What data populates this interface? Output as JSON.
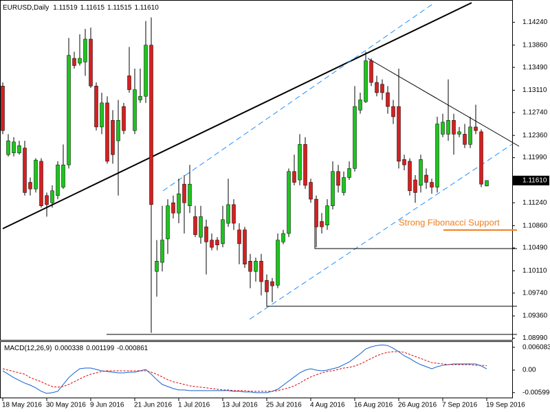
{
  "chart_data": {
    "type": "candlestick",
    "symbol": "EURUSD,Daily",
    "value_labels": [
      "1.11519",
      "1.11615",
      "1.11515",
      "1.11610"
    ],
    "annotation": "Strong Fibonacci Support",
    "up_color": "#1ec41e",
    "down_color": "#d42020",
    "x": [
      "18 May 2016",
      null,
      null,
      null,
      null,
      null,
      null,
      null,
      "30 May 2016",
      null,
      null,
      null,
      null,
      null,
      null,
      null,
      "9 Jun 2016",
      null,
      null,
      null,
      null,
      null,
      null,
      null,
      "21 Jun 2016",
      null,
      null,
      null,
      null,
      null,
      null,
      null,
      "1 Jul 2016",
      null,
      null,
      null,
      null,
      null,
      null,
      null,
      "13 Jul 2016",
      null,
      null,
      null,
      null,
      null,
      null,
      null,
      "25 Jul 2016",
      null,
      null,
      null,
      null,
      null,
      null,
      null,
      "4 Aug 2016",
      null,
      null,
      null,
      null,
      null,
      null,
      null,
      "16 Aug 2016",
      null,
      null,
      null,
      null,
      null,
      null,
      null,
      "26 Aug 2016",
      null,
      null,
      null,
      null,
      null,
      null,
      null,
      "7 Sep 2016",
      null,
      null,
      null,
      null,
      null,
      null,
      null,
      "19 Sep 2016"
    ],
    "open": [
      1.1318,
      1.1204,
      1.1207,
      1.1207,
      1.1215,
      1.1158,
      1.1147,
      1.1193,
      1.1136,
      1.1124,
      1.1136,
      1.115,
      1.1187,
      1.1364,
      1.1356,
      1.1358,
      1.1396,
      1.1318,
      1.125,
      1.129,
      1.1261,
      1.1227,
      1.1284,
      1.1335,
      1.1244,
      1.1295,
      1.1301,
      1.1386,
      1.101,
      1.1025,
      1.1064,
      1.1124,
      1.1107,
      1.1155,
      1.1119,
      1.1101,
      1.1067,
      1.1084,
      1.1062,
      1.1062,
      1.1056,
      1.109,
      1.1121,
      1.1079,
      1.1079,
      1.1027,
      1.101,
      1.1027,
      1.0995,
      1.0993,
      1.0987,
      1.1059,
      1.1073,
      1.1176,
      1.1162,
      1.1221,
      1.1158,
      1.113,
      1.1093,
      1.1087,
      1.1119,
      1.1176,
      1.1141,
      1.1166,
      1.1181,
      1.1278,
      1.1292,
      1.136,
      1.1324,
      1.1321,
      1.1307,
      1.1284,
      1.1284,
      1.1196,
      1.1193,
      1.1162,
      1.1153,
      1.117,
      1.1158,
      1.115,
      1.1238,
      1.1238,
      1.1261,
      1.1238,
      1.1238,
      1.1221,
      1.125,
      1.1242,
      1.11519
    ],
    "high": [
      1.1324,
      1.1238,
      1.1233,
      1.1227,
      1.1227,
      1.1166,
      1.1198,
      1.1198,
      1.1141,
      1.1153,
      1.1193,
      1.1221,
      1.1398,
      1.1375,
      1.1404,
      1.1413,
      1.1415,
      1.1324,
      1.1307,
      1.1301,
      1.1278,
      1.1295,
      1.129,
      1.1383,
      1.1347,
      1.1347,
      1.1426,
      1.1432,
      1.1062,
      1.1119,
      1.113,
      1.1136,
      1.1164,
      1.117,
      1.1187,
      1.1119,
      1.1119,
      1.1096,
      1.1073,
      1.1067,
      1.1119,
      1.1164,
      1.113,
      1.109,
      1.1084,
      1.1039,
      1.1033,
      1.1039,
      1.1005,
      1.0999,
      1.1073,
      1.1079,
      1.1181,
      1.1204,
      1.1238,
      1.1233,
      1.1164,
      1.1136,
      1.1107,
      1.113,
      1.1193,
      1.1187,
      1.1176,
      1.1193,
      1.1318,
      1.1307,
      1.1375,
      1.1364,
      1.1335,
      1.1329,
      1.1318,
      1.1295,
      1.1347,
      1.1204,
      1.1198,
      1.117,
      1.1204,
      1.1181,
      1.1164,
      1.1267,
      1.1272,
      1.1329,
      1.1272,
      1.125,
      1.1255,
      1.1267,
      1.1287,
      1.1246,
      1.11615
    ],
    "low": [
      1.1238,
      1.1201,
      1.1201,
      1.1204,
      1.1136,
      1.1136,
      1.1141,
      1.1116,
      1.1101,
      1.1116,
      1.113,
      1.1147,
      1.1181,
      1.1347,
      1.1352,
      1.1335,
      1.1315,
      1.1244,
      1.1238,
      1.1189,
      1.1189,
      1.1136,
      1.1238,
      1.1307,
      1.1238,
      1.129,
      1.129,
      1.0908,
      1.0968,
      1.101,
      1.1039,
      1.1098,
      1.109,
      1.1073,
      1.1107,
      1.1067,
      1.1056,
      1.1005,
      1.1045,
      1.1045,
      1.105,
      1.1084,
      1.1079,
      1.1022,
      1.1016,
      1.0982,
      1.0993,
      1.097,
      1.0953,
      1.0959,
      1.0982,
      1.1055,
      1.1067,
      1.1153,
      1.1153,
      1.1147,
      1.1124,
      1.105,
      1.1073,
      1.1079,
      1.1113,
      1.1141,
      1.1136,
      1.1162,
      1.1176,
      1.1272,
      1.129,
      1.1318,
      1.1301,
      1.1295,
      1.1272,
      1.1255,
      1.1181,
      1.1178,
      1.1136,
      1.1124,
      1.1141,
      1.1147,
      1.1139,
      1.1141,
      1.1233,
      1.1227,
      1.1204,
      1.1233,
      1.1215,
      1.1215,
      1.1238,
      1.115,
      1.11515
    ],
    "close": [
      1.1244,
      1.1227,
      1.1225,
      1.1219,
      1.1141,
      1.1147,
      1.1195,
      1.1119,
      1.1121,
      1.1144,
      1.1187,
      1.1187,
      1.1369,
      1.1352,
      1.1364,
      1.1396,
      1.1318,
      1.125,
      1.129,
      1.1193,
      1.1204,
      1.1261,
      1.1244,
      1.1312,
      1.1312,
      1.1301,
      1.1386,
      1.1121,
      1.1027,
      1.1062,
      1.1119,
      1.1107,
      1.1139,
      1.1124,
      1.1155,
      1.1071,
      1.1101,
      1.1059,
      1.105,
      1.1054,
      1.1096,
      1.1121,
      1.109,
      1.1056,
      1.1022,
      1.101,
      1.1027,
      1.0993,
      1.0976,
      1.0986,
      1.1062,
      1.1073,
      1.1176,
      1.1158,
      1.1221,
      1.1153,
      1.113,
      1.1084,
      1.1084,
      1.1119,
      1.1176,
      1.1153,
      1.1166,
      1.1181,
      1.1284,
      1.1295,
      1.136,
      1.1324,
      1.1307,
      1.1307,
      1.1284,
      1.1267,
      1.1193,
      1.1187,
      1.1144,
      1.1141,
      1.1196,
      1.1158,
      1.115,
      1.1255,
      1.1258,
      1.1261,
      1.1238,
      1.1242,
      1.1221,
      1.125,
      1.1244,
      1.1155,
      1.1161
    ],
    "ylim": [
      1.0895,
      1.1461
    ],
    "yticks": [
      {
        "value": 1.1424,
        "label": "1.14240"
      },
      {
        "value": 1.1386,
        "label": "1.13860"
      },
      {
        "value": 1.1349,
        "label": "1.13490"
      },
      {
        "value": 1.1311,
        "label": "1.13110"
      },
      {
        "value": 1.1274,
        "label": "1.12740"
      },
      {
        "value": 1.1236,
        "label": "1.12360"
      },
      {
        "value": 1.1199,
        "label": "1.11990"
      },
      {
        "value": 1.1124,
        "label": "1.11240"
      },
      {
        "value": 1.1086,
        "label": "1.10860"
      },
      {
        "value": 1.1049,
        "label": "1.10490"
      },
      {
        "value": 1.1011,
        "label": "1.10110"
      },
      {
        "value": 1.0974,
        "label": "1.09740"
      },
      {
        "value": 1.0936,
        "label": "1.09360"
      },
      {
        "value": 1.0899,
        "label": "1.08990"
      }
    ],
    "indicator": {
      "type": "line",
      "label": "MACD(12,26,9)",
      "histogram_value": -0.000861,
      "ylim": [
        -0.0075,
        0.0075
      ],
      "yticks": [
        0.006083,
        {
          "value": 0,
          "label": "0.00"
        },
        -0.005993
      ],
      "series": [
        {
          "color": "#1060d0",
          "dashed": false,
          "values": [
            -0.00018,
            -0.00109,
            -0.002,
            -0.00273,
            -0.00346,
            -0.004,
            -0.00473,
            -0.00564,
            -0.00619,
            -0.00601,
            -0.00564,
            -0.00382,
            -0.002,
            -0.00073,
            0.00036,
            0.00055,
            0.00055,
            0.00018,
            -0.00018,
            -0.00036,
            -0.00055,
            -0.00073,
            -0.00073,
            -0.00055,
            -0.00055,
            -0.00018,
            0.00018,
            -0.00109,
            -0.00255,
            -0.00382,
            -0.00437,
            -0.00491,
            -0.00528,
            -0.00528,
            -0.00546,
            -0.00546,
            -0.00546,
            -0.00546,
            -0.00546,
            -0.00546,
            -0.00546,
            -0.00546,
            -0.00564,
            -0.00564,
            -0.00582,
            -0.00582,
            -0.00601,
            -0.00601,
            -0.00601,
            -0.00564,
            -0.0051,
            -0.004,
            -0.00291,
            -0.00182,
            -0.00073,
            0,
            0.00036,
            0,
            -0.00018,
            0,
            0.00036,
            0.00073,
            0.00146,
            0.00218,
            0.00328,
            0.00437,
            0.00564,
            0.00619,
            0.00655,
            0.00673,
            0.00655,
            0.00582,
            0.00491,
            0.00382,
            0.00309,
            0.00218,
            0.00146,
            0.00091,
            0.00036,
            0.00091,
            0.00127,
            0.00146,
            0.00164,
            0.00164,
            0.00164,
            0.00164,
            0.00164,
            0.00109,
            0.000338
          ]
        },
        {
          "color": "#e00000",
          "dashed": true,
          "values": [
            0.00036,
            0,
            -0.00036,
            -0.00073,
            -0.00109,
            -0.002,
            -0.00255,
            -0.00309,
            -0.00382,
            -0.00437,
            -0.00455,
            -0.00437,
            -0.00382,
            -0.00309,
            -0.00237,
            -0.00164,
            -0.00109,
            -0.00073,
            -0.00036,
            -0.00018,
            -0.00018,
            -0.00018,
            -0.00018,
            -0.00018,
            -0.00018,
            -0.00018,
            -0.00018,
            -0.00055,
            -0.00109,
            -0.00182,
            -0.00255,
            -0.00309,
            -0.00346,
            -0.00382,
            -0.00419,
            -0.00437,
            -0.00455,
            -0.00473,
            -0.00491,
            -0.0051,
            -0.00528,
            -0.00528,
            -0.00546,
            -0.00546,
            -0.00546,
            -0.00564,
            -0.00564,
            -0.00564,
            -0.00564,
            -0.00564,
            -0.00546,
            -0.0051,
            -0.00473,
            -0.00419,
            -0.00346,
            -0.00255,
            -0.00182,
            -0.00127,
            -0.00073,
            -0.00036,
            -0.00018,
            0.00018,
            0.00055,
            0.00073,
            0.00109,
            0.00164,
            0.00237,
            0.00309,
            0.00382,
            0.00437,
            0.00473,
            0.00491,
            0.00491,
            0.00473,
            0.00419,
            0.00364,
            0.00309,
            0.00255,
            0.002,
            0.00182,
            0.00164,
            0.00146,
            0.00146,
            0.00146,
            0.00146,
            0.00146,
            0.00127,
            0.00127,
            0.001199
          ]
        }
      ]
    }
  }
}
